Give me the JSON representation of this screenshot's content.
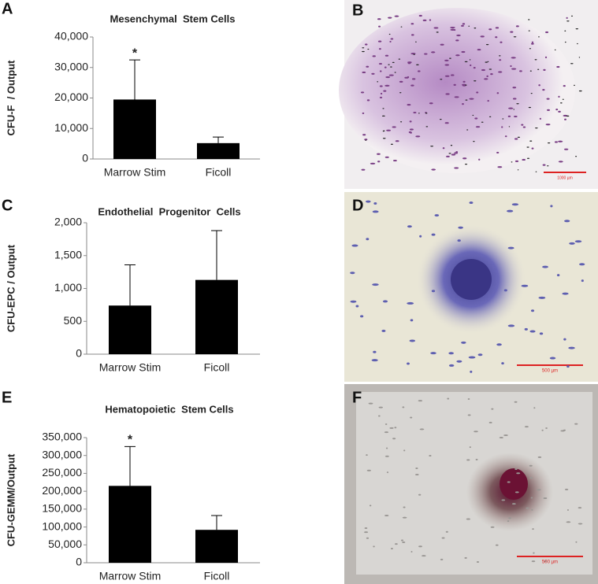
{
  "chart_data": [
    {
      "type": "bar",
      "panel_label": "A",
      "title": "Mesenchymal  Stem Cells",
      "ylabel": "CFU-F  / Output",
      "categories": [
        "Marrow Stim",
        "Ficoll"
      ],
      "values": [
        19500,
        5200
      ],
      "errors": [
        13000,
        2000
      ],
      "annotation": "*",
      "color": "#000000",
      "ylim": [
        0,
        40000
      ],
      "yticks": [
        0,
        {
          "value": 10000,
          "label": "10,000"
        },
        {
          "value": 20000,
          "label": "20,000"
        },
        {
          "value": 30000,
          "label": "30,000"
        },
        {
          "value": 40000,
          "label": "40,000"
        }
      ]
    },
    {
      "type": "bar",
      "panel_label": "C",
      "title": "Endothelial  Progenitor  Cells",
      "ylabel": "CFU-EPC / Output",
      "categories": [
        "Marrow Stim",
        "Ficoll"
      ],
      "values": [
        740,
        1130
      ],
      "errors": [
        620,
        750
      ],
      "color": "#000000",
      "ylim": [
        0,
        2000
      ],
      "yticks": [
        0,
        500,
        {
          "value": 1000,
          "label": "1,000"
        },
        {
          "value": 1500,
          "label": "1,500"
        },
        {
          "value": 2000,
          "label": "2,000"
        }
      ]
    },
    {
      "type": "bar",
      "panel_label": "E",
      "title": "Hematopoietic  Stem Cells",
      "ylabel": "CFU-GEMM/Output",
      "categories": [
        "Marrow Stim",
        "Ficoll"
      ],
      "values": [
        215000,
        92000
      ],
      "errors": [
        110000,
        40000
      ],
      "annotation": "*",
      "color": "#000000",
      "ylim": [
        0,
        350000
      ],
      "yticks": [
        0,
        {
          "value": 50000,
          "label": "50,000"
        },
        {
          "value": 100000,
          "label": "100,000"
        },
        {
          "value": 150000,
          "label": "150,000"
        },
        {
          "value": 200000,
          "label": "200,000"
        },
        {
          "value": 250000,
          "label": "250,000"
        },
        {
          "value": 300000,
          "label": "300,000"
        },
        {
          "value": 350000,
          "label": "350,000"
        }
      ]
    }
  ],
  "images": [
    {
      "label": "B",
      "scale_label": "1000 µm"
    },
    {
      "label": "D",
      "scale_label": "500 µm"
    },
    {
      "label": "F",
      "scale_label": "500 µm"
    }
  ]
}
